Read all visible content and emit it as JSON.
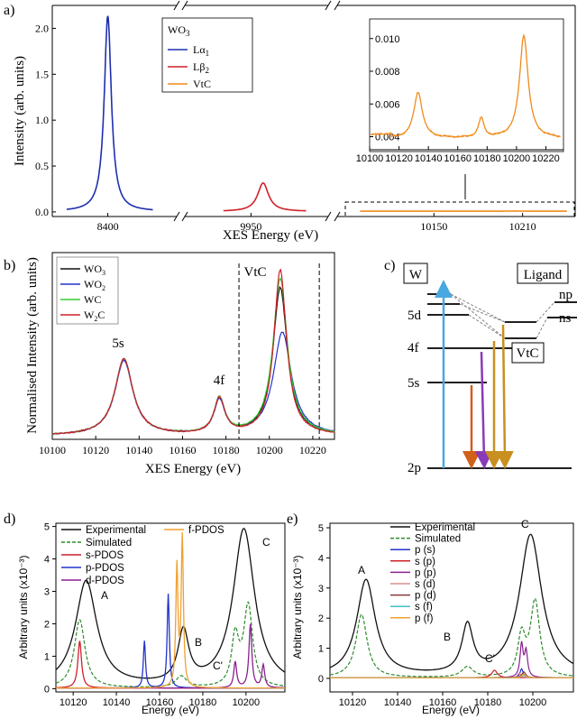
{
  "panel_labels": {
    "a": "a)",
    "b": "b)",
    "c": "c)",
    "d": "d)",
    "e": "e)"
  },
  "colors": {
    "la1": "#1f2fb0",
    "lb2": "#d0202a",
    "vtc": "#f08a1c",
    "black": "#111111",
    "blue": "#2233cc",
    "green": "#33cc33",
    "red": "#d0202a",
    "sim": "#2e8b2e",
    "purple": "#8a2090",
    "orange": "#f0a030",
    "cyan": "#40c0d0",
    "brown": "#8b3a3a",
    "diag_blue": "#4aa8e0",
    "diag_orange": "#d0601a",
    "diag_purple": "#8a3ab8",
    "diag_gold": "#c89020"
  },
  "chart_data": [
    {
      "id": "a",
      "type": "line",
      "xlabel": "XES Energy (eV)",
      "ylabel": "Intensity (arb. units)",
      "ylim": [
        -0.05,
        2.25
      ],
      "yticks": [
        "0.0",
        "0.5",
        "1.0",
        "1.5",
        "2.0"
      ],
      "ytick_values": [
        0,
        0.5,
        1.0,
        1.5,
        2.0
      ],
      "xticks": [
        "8400",
        "9950",
        "10150",
        "10210"
      ],
      "legend_title": "WO3",
      "legend_title_main": "WO",
      "legend_title_sub": "3",
      "series": [
        {
          "name": "Lα1",
          "name_main": "Lα",
          "name_sub": "1",
          "center": 8398,
          "peak": 2.13,
          "width": 4.5,
          "range": [
            8355,
            8445
          ]
        },
        {
          "name": "Lβ2",
          "name_main": "Lβ",
          "name_sub": "2",
          "center": 9961,
          "peak": 0.31,
          "width": 6,
          "range": [
            9925,
            10000
          ]
        },
        {
          "name": "VtC",
          "name_main": "VtC",
          "name_sub": "",
          "center": 10180,
          "peak": 0.01,
          "width": 40,
          "range": [
            10100,
            10240
          ]
        }
      ],
      "inset": {
        "xlim": [
          10100,
          10232
        ],
        "ylim": [
          0.0032,
          0.0112
        ],
        "xticks": [
          "10100",
          "10120",
          "10140",
          "10160",
          "10180",
          "10200",
          "10220"
        ],
        "xtick_values": [
          10100,
          10120,
          10140,
          10160,
          10180,
          10200,
          10220
        ],
        "yticks": [
          "0.004",
          "0.006",
          "0.008",
          "0.010"
        ],
        "ytick_values": [
          0.004,
          0.006,
          0.008,
          0.01
        ]
      }
    },
    {
      "id": "b",
      "type": "line",
      "xlabel": "XES Energy (eV)",
      "ylabel": "Normalised Intensity (arb. units)",
      "xlim": [
        10100,
        10230
      ],
      "xticks": [
        "10100",
        "10120",
        "10140",
        "10160",
        "10180",
        "10200",
        "10220"
      ],
      "xtick_values": [
        10100,
        10120,
        10140,
        10160,
        10180,
        10200,
        10220
      ],
      "ylim": [
        0,
        1.05
      ],
      "annotations": [
        "5s",
        "4f",
        "VtC"
      ],
      "vlines": [
        10186,
        10223
      ],
      "series": [
        {
          "name": "WO3",
          "name_main": "WO",
          "name_sub": "3",
          "peaks": [
            [
              10133,
              0.43,
              5
            ],
            [
              10177,
              0.2,
              3
            ],
            [
              10205,
              0.83,
              4
            ]
          ]
        },
        {
          "name": "WO2",
          "name_main": "WO",
          "name_sub": "2",
          "peaks": [
            [
              10133,
              0.42,
              5
            ],
            [
              10177,
              0.19,
              3
            ],
            [
              10206,
              0.58,
              5
            ]
          ]
        },
        {
          "name": "WC",
          "name_main": "WC",
          "name_sub": "",
          "peaks": [
            [
              10133,
              0.43,
              5
            ],
            [
              10177,
              0.2,
              3
            ],
            [
              10205,
              0.88,
              4
            ]
          ]
        },
        {
          "name": "W2C",
          "name_main": "W",
          "name_sub": "2",
          "name_tail": "C",
          "peaks": [
            [
              10133,
              0.43,
              5
            ],
            [
              10177,
              0.2,
              3
            ],
            [
              10205,
              0.93,
              3.5
            ]
          ]
        }
      ]
    },
    {
      "id": "c",
      "type": "diagram",
      "left_label": "W",
      "right_label": "Ligand",
      "levels": [
        "5d",
        "4f",
        "5s",
        "2p"
      ],
      "ligand_levels": [
        "np",
        "ns"
      ],
      "box_label": "VtC"
    },
    {
      "id": "d",
      "type": "line",
      "xlabel": "Energy (eV)",
      "ylabel": "Arbitrary units (x10⁻³)",
      "xlim": [
        10112,
        10218
      ],
      "ylim": [
        -0.1,
        5.1
      ],
      "xticks": [
        "10120",
        "10140",
        "10160",
        "10180",
        "10200"
      ],
      "xtick_values": [
        10120,
        10140,
        10160,
        10180,
        10200
      ],
      "yticks": [
        "0",
        "1",
        "2",
        "3",
        "4",
        "5"
      ],
      "ytick_values": [
        0,
        1,
        2,
        3,
        4,
        5
      ],
      "annotations": [
        "A",
        "B",
        "C'",
        "C"
      ],
      "legend": [
        "Experimental",
        "Simulated",
        "s-PDOS",
        "p-PDOS",
        "d-PDOS",
        "f-PDOS"
      ],
      "series": [
        {
          "name": "Experimental",
          "peaks": [
            [
              10126,
              3.25,
              6
            ],
            [
              10171,
              1.6,
              3
            ],
            [
              10199,
              4.85,
              6
            ]
          ]
        },
        {
          "name": "Simulated",
          "peaks": [
            [
              10123,
              2.1,
              3
            ],
            [
              10170,
              0.35,
              3
            ],
            [
              10195,
              1.5,
              2
            ],
            [
              10201,
              2.5,
              2.5
            ]
          ]
        },
        {
          "name": "s-PDOS",
          "peaks": [
            [
              10123,
              1.45,
              1
            ]
          ]
        },
        {
          "name": "p-PDOS",
          "peaks": [
            [
              10153,
              1.45,
              0.6
            ],
            [
              10164,
              2.9,
              0.6
            ]
          ]
        },
        {
          "name": "d-PDOS",
          "peaks": [
            [
              10195,
              0.8,
              0.8
            ],
            [
              10202,
              1.95,
              0.8
            ],
            [
              10208,
              0.7,
              0.8
            ]
          ]
        },
        {
          "name": "f-PDOS",
          "peaks": [
            [
              10168,
              3.7,
              0.6
            ],
            [
              10170.5,
              4.6,
              0.6
            ]
          ]
        }
      ]
    },
    {
      "id": "e",
      "type": "line",
      "xlabel": "Energy (eV)",
      "ylabel": "Arbitrary units (x10⁻³)",
      "xlim": [
        10110,
        10218
      ],
      "ylim": [
        -0.45,
        5.15
      ],
      "xticks": [
        "10120",
        "10140",
        "10160",
        "10180",
        "10200"
      ],
      "xtick_values": [
        10120,
        10140,
        10160,
        10180,
        10200
      ],
      "yticks": [
        "0",
        "1",
        "2",
        "3",
        "4",
        "5"
      ],
      "ytick_values": [
        0,
        1,
        2,
        3,
        4,
        5
      ],
      "annotations": [
        "A",
        "B",
        "C'",
        "C"
      ],
      "legend": [
        "Experimental",
        "Simulated",
        "p (s)",
        "s (p)",
        "p (p)",
        "s (d)",
        "p (d)",
        "s (f)",
        "p (f)"
      ],
      "series": [
        {
          "name": "Experimental",
          "peaks": [
            [
              10126,
              3.2,
              5
            ],
            [
              10171,
              1.6,
              3
            ],
            [
              10199,
              4.7,
              6
            ]
          ]
        },
        {
          "name": "Simulated",
          "peaks": [
            [
              10124,
              2.1,
              3
            ],
            [
              10171,
              0.35,
              3
            ],
            [
              10195,
              1.3,
              2
            ],
            [
              10201,
              2.5,
              2.5
            ]
          ]
        },
        {
          "name": "p (s)",
          "peaks": [
            [
              10195,
              0.3,
              0.8
            ]
          ]
        },
        {
          "name": "s (p)",
          "peaks": [
            [
              10183,
              0.25,
              1.5
            ]
          ]
        },
        {
          "name": "p (p)",
          "peaks": [
            [
              10195,
              1.1,
              0.8
            ],
            [
              10197,
              0.85,
              0.8
            ]
          ]
        },
        {
          "name": "s (d)",
          "peaks": [
            [
              10194,
              0.15,
              1
            ]
          ]
        },
        {
          "name": "p (d)",
          "peaks": [
            [
              10196,
              0.2,
              1
            ]
          ]
        },
        {
          "name": "s (f)",
          "peaks": [
            [
              10196,
              0.1,
              1
            ]
          ]
        },
        {
          "name": "p (f)",
          "peaks": [
            [
              10196,
              0.12,
              1
            ]
          ]
        }
      ]
    }
  ]
}
